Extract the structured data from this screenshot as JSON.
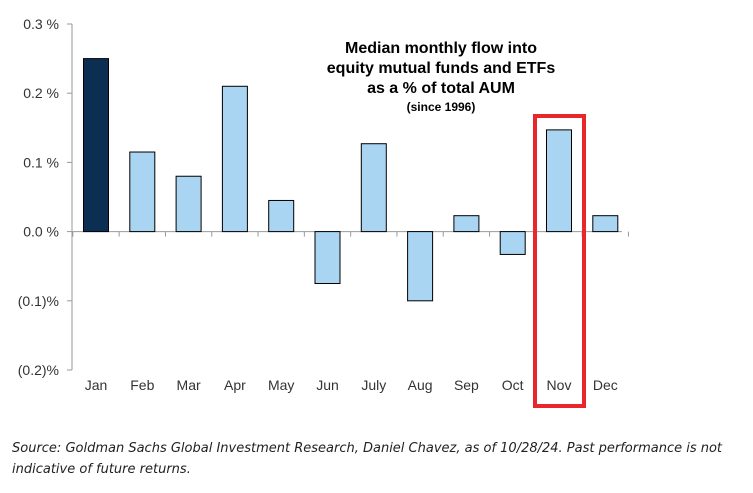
{
  "chart_data": {
    "type": "bar",
    "title": [
      "Median monthly flow into",
      "equity mutual funds and ETFs",
      "as a % of total AUM"
    ],
    "subtitle": "(since 1996)",
    "categories": [
      "Jan",
      "Feb",
      "Mar",
      "Apr",
      "May",
      "Jun",
      "July",
      "Aug",
      "Sep",
      "Oct",
      "Nov",
      "Dec"
    ],
    "values": [
      0.25,
      0.115,
      0.08,
      0.21,
      0.045,
      -0.075,
      0.127,
      -0.1,
      0.023,
      -0.033,
      0.147,
      0.023
    ],
    "ylim": [
      -0.2,
      0.3
    ],
    "yticks": [
      0.3,
      0.2,
      0.1,
      0.0,
      -0.1,
      -0.2
    ],
    "ytick_labels": [
      "0.3 %",
      "0.2 %",
      "0.1 %",
      "0.0 %",
      "(0.1)%",
      "(0.2)%"
    ],
    "xlabel": "",
    "ylabel": "",
    "highlight_category": "Nov",
    "colors": {
      "default_bar": "#a9d4f2",
      "first_bar": "#0c2e52",
      "bar_edge": "#000000",
      "highlight_box": "#e8262b",
      "axis": "#999999"
    }
  },
  "source_note": "Source: Goldman Sachs Global Investment Research, Daniel Chavez,  as of 10/28/24. Past performance is not indicative of future returns."
}
